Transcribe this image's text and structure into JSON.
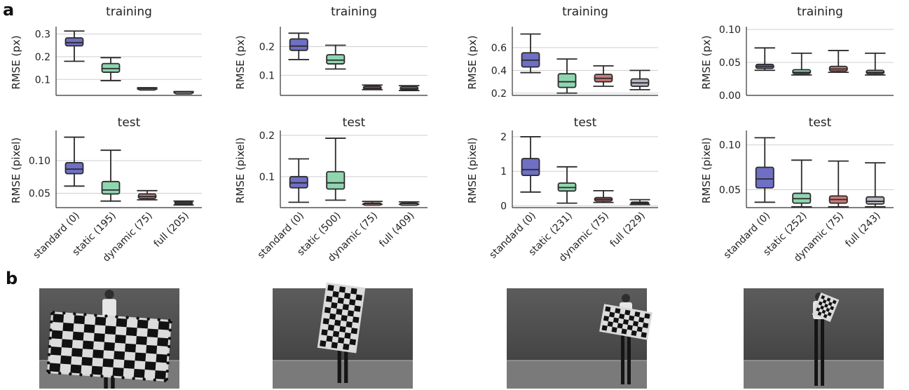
{
  "panel_labels": [
    "a",
    "b"
  ],
  "colors": {
    "standard": "#6f6fc4",
    "static": "#8fd6b0",
    "dynamic": "#cf7b7b",
    "full": "#b6b6bf"
  },
  "chart_data": [
    {
      "type": "box",
      "title": "training",
      "ylabel": "RMSE (px)",
      "ylim": [
        0.03,
        0.32
      ],
      "yticks": [
        0.1,
        0.2,
        0.3
      ],
      "ytick_labels": [
        "0.1",
        "0.2",
        "0.3"
      ],
      "categories": [
        "standard (0)",
        "static (195)",
        "dynamic (75)",
        "full (205)"
      ],
      "boxes": [
        {
          "min": 0.18,
          "q1": 0.248,
          "median": 0.262,
          "q3": 0.283,
          "max": 0.313
        },
        {
          "min": 0.095,
          "q1": 0.132,
          "median": 0.148,
          "q3": 0.17,
          "max": 0.196
        },
        {
          "min": 0.058,
          "q1": 0.059,
          "median": 0.061,
          "q3": 0.063,
          "max": 0.064
        },
        {
          "min": 0.042,
          "q1": 0.043,
          "median": 0.045,
          "q3": 0.046,
          "max": 0.047
        }
      ]
    },
    {
      "type": "box",
      "title": "training",
      "ylabel": "RMSE (px)",
      "ylim": [
        0.03,
        0.26
      ],
      "yticks": [
        0.1,
        0.2
      ],
      "ytick_labels": [
        "0.1",
        "0.2"
      ],
      "categories": [
        "standard (0)",
        "static (500)",
        "dynamic (75)",
        "full (409)"
      ],
      "boxes": [
        {
          "min": 0.155,
          "q1": 0.187,
          "median": 0.202,
          "q3": 0.227,
          "max": 0.247
        },
        {
          "min": 0.122,
          "q1": 0.14,
          "median": 0.153,
          "q3": 0.172,
          "max": 0.205
        },
        {
          "min": 0.05,
          "q1": 0.052,
          "median": 0.056,
          "q3": 0.062,
          "max": 0.066
        },
        {
          "min": 0.047,
          "q1": 0.05,
          "median": 0.054,
          "q3": 0.06,
          "max": 0.064
        }
      ]
    },
    {
      "type": "box",
      "title": "training",
      "ylabel": "RMSE (px)",
      "ylim": [
        0.18,
        0.76
      ],
      "yticks": [
        0.2,
        0.4,
        0.6
      ],
      "ytick_labels": [
        "0.2",
        "0.4",
        "0.6"
      ],
      "categories": [
        "standard (0)",
        "static (231)",
        "dynamic (75)",
        "full (229)"
      ],
      "boxes": [
        {
          "min": 0.38,
          "q1": 0.43,
          "median": 0.49,
          "q3": 0.555,
          "max": 0.72
        },
        {
          "min": 0.2,
          "q1": 0.25,
          "median": 0.3,
          "q3": 0.37,
          "max": 0.5
        },
        {
          "min": 0.26,
          "q1": 0.3,
          "median": 0.33,
          "q3": 0.365,
          "max": 0.44
        },
        {
          "min": 0.23,
          "q1": 0.26,
          "median": 0.29,
          "q3": 0.325,
          "max": 0.4
        }
      ]
    },
    {
      "type": "box",
      "title": "training",
      "ylabel": "RMSE (px)",
      "ylim": [
        0.0,
        0.1
      ],
      "yticks": [
        0.0,
        0.05,
        0.1
      ],
      "ytick_labels": [
        "0.00",
        "0.05",
        "0.10"
      ],
      "categories": [
        "standard (0)",
        "static (252)",
        "dynamic (75)",
        "full (243)"
      ],
      "boxes": [
        {
          "min": 0.038,
          "q1": 0.041,
          "median": 0.044,
          "q3": 0.047,
          "max": 0.072
        },
        {
          "min": 0.031,
          "q1": 0.033,
          "median": 0.035,
          "q3": 0.039,
          "max": 0.064
        },
        {
          "min": 0.035,
          "q1": 0.037,
          "median": 0.04,
          "q3": 0.044,
          "max": 0.068
        },
        {
          "min": 0.031,
          "q1": 0.033,
          "median": 0.035,
          "q3": 0.038,
          "max": 0.064
        }
      ]
    },
    {
      "type": "box",
      "title": "test",
      "ylabel": "RMSE (pixel)",
      "ylim": [
        0.028,
        0.142
      ],
      "yticks": [
        0.05,
        0.1
      ],
      "ytick_labels": [
        "0.05",
        "0.10"
      ],
      "categories": [
        "standard (0)",
        "static (195)",
        "dynamic (75)",
        "full (205)"
      ],
      "boxes": [
        {
          "min": 0.061,
          "q1": 0.08,
          "median": 0.087,
          "q3": 0.097,
          "max": 0.136
        },
        {
          "min": 0.038,
          "q1": 0.049,
          "median": 0.055,
          "q3": 0.068,
          "max": 0.116
        },
        {
          "min": 0.04,
          "q1": 0.042,
          "median": 0.045,
          "q3": 0.049,
          "max": 0.054
        },
        {
          "min": 0.032,
          "q1": 0.033,
          "median": 0.035,
          "q3": 0.037,
          "max": 0.038
        }
      ]
    },
    {
      "type": "box",
      "title": "test",
      "ylabel": "RMSE (pixel)",
      "ylim": [
        0.025,
        0.205
      ],
      "yticks": [
        0.1,
        0.2
      ],
      "ytick_labels": [
        "0.1",
        "0.2"
      ],
      "categories": [
        "standard (0)",
        "static (500)",
        "dynamic (75)",
        "full (409)"
      ],
      "boxes": [
        {
          "min": 0.038,
          "q1": 0.073,
          "median": 0.085,
          "q3": 0.1,
          "max": 0.143
        },
        {
          "min": 0.043,
          "q1": 0.07,
          "median": 0.085,
          "q3": 0.112,
          "max": 0.193
        },
        {
          "min": 0.033,
          "q1": 0.034,
          "median": 0.035,
          "q3": 0.036,
          "max": 0.04
        },
        {
          "min": 0.033,
          "q1": 0.034,
          "median": 0.035,
          "q3": 0.036,
          "max": 0.039
        }
      ]
    },
    {
      "type": "box",
      "title": "test",
      "ylabel": "RMSE (pixel)",
      "ylim": [
        -0.05,
        2.1
      ],
      "yticks": [
        0,
        1,
        2
      ],
      "ytick_labels": [
        "0",
        "1",
        "2"
      ],
      "categories": [
        "standard (0)",
        "static (231)",
        "dynamic (75)",
        "full (229)"
      ],
      "boxes": [
        {
          "min": 0.4,
          "q1": 0.88,
          "median": 1.05,
          "q3": 1.37,
          "max": 2.0
        },
        {
          "min": 0.08,
          "q1": 0.43,
          "median": 0.53,
          "q3": 0.66,
          "max": 1.13
        },
        {
          "min": 0.1,
          "q1": 0.14,
          "median": 0.19,
          "q3": 0.24,
          "max": 0.44
        },
        {
          "min": 0.04,
          "q1": 0.06,
          "median": 0.08,
          "q3": 0.11,
          "max": 0.18
        }
      ]
    },
    {
      "type": "box",
      "title": "test",
      "ylabel": "RMSE (pixel)",
      "ylim": [
        0.03,
        0.113
      ],
      "yticks": [
        0.05,
        0.1
      ],
      "ytick_labels": [
        "0.05",
        "0.10"
      ],
      "categories": [
        "standard (0)",
        "static (252)",
        "dynamic (75)",
        "full (243)"
      ],
      "boxes": [
        {
          "min": 0.036,
          "q1": 0.052,
          "median": 0.062,
          "q3": 0.075,
          "max": 0.108
        },
        {
          "min": 0.031,
          "q1": 0.035,
          "median": 0.04,
          "q3": 0.046,
          "max": 0.083
        },
        {
          "min": 0.031,
          "q1": 0.035,
          "median": 0.039,
          "q3": 0.043,
          "max": 0.082
        },
        {
          "min": 0.031,
          "q1": 0.034,
          "median": 0.037,
          "q3": 0.042,
          "max": 0.08
        }
      ]
    }
  ],
  "photos": [
    {
      "pattern": "wide-checkerboard"
    },
    {
      "pattern": "tall-checkerboard"
    },
    {
      "pattern": "small-tilted-checkerboard"
    },
    {
      "pattern": "tiny-checkerboard"
    }
  ]
}
